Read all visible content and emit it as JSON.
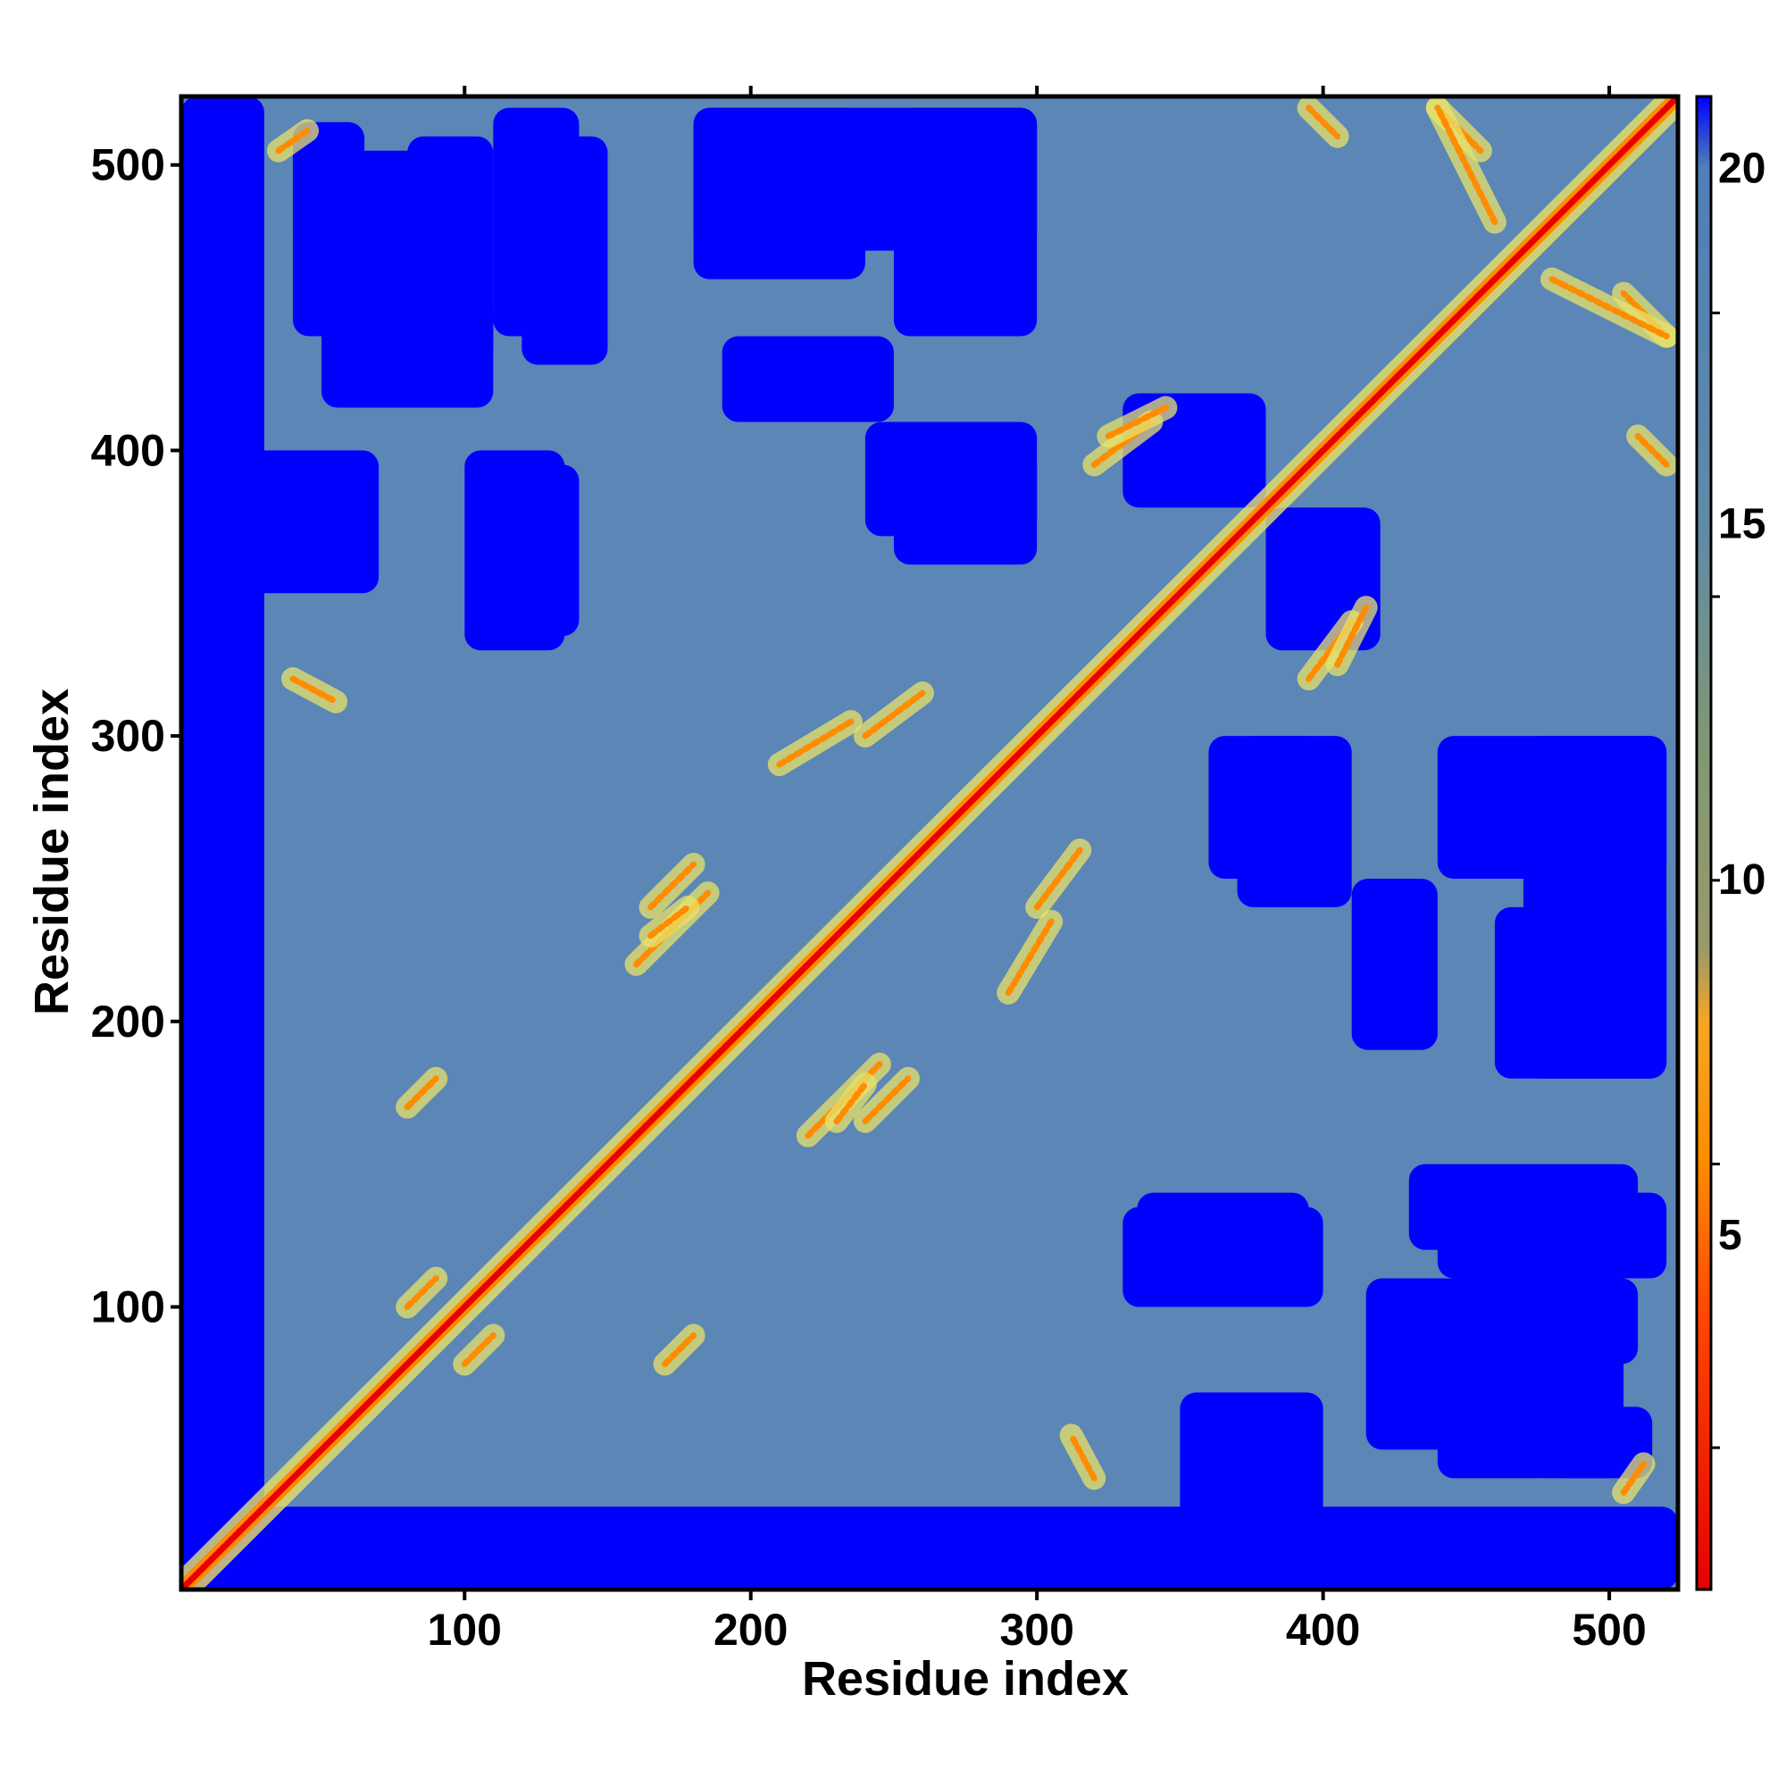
{
  "chart_data": {
    "type": "heatmap",
    "title": "",
    "xlabel": "Residue index",
    "ylabel": "Residue index",
    "xlim": [
      1,
      524
    ],
    "ylim": [
      1,
      524
    ],
    "x_ticks": [
      100,
      200,
      300,
      400,
      500
    ],
    "y_ticks": [
      100,
      200,
      300,
      400,
      500
    ],
    "diagonal": [
      [
        1,
        1
      ],
      [
        524,
        524
      ]
    ],
    "colorbar": {
      "ticks": [
        5,
        10,
        15,
        20
      ],
      "range": [
        0,
        21
      ],
      "stops": [
        {
          "value": 0,
          "color": "#e60000"
        },
        {
          "value": 4,
          "color": "#ff4a00"
        },
        {
          "value": 6,
          "color": "#ff8c00"
        },
        {
          "value": 8,
          "color": "#f5a623"
        },
        {
          "value": 9,
          "color": "#9a9a6a"
        },
        {
          "value": 12,
          "color": "#7f9775"
        },
        {
          "value": 15,
          "color": "#5f8aa8"
        },
        {
          "value": 20,
          "color": "#4f80b8"
        },
        {
          "value": 21,
          "color": "#0000ff"
        }
      ]
    },
    "colors": {
      "far": "#0000ff",
      "mid": "#5b86b5",
      "near": "#e8e36a",
      "close": "#ff8c00",
      "contact": "#e60000"
    },
    "contact_features": [
      {
        "from": [
          40,
          320
        ],
        "to": [
          55,
          312
        ]
      },
      {
        "from": [
          240,
          300
        ],
        "to": [
          260,
          315
        ]
      },
      {
        "from": [
          320,
          395
        ],
        "to": [
          340,
          410
        ]
      },
      {
        "from": [
          440,
          520
        ],
        "to": [
          455,
          505
        ]
      },
      {
        "from": [
          480,
          460
        ],
        "to": [
          520,
          440
        ]
      },
      {
        "from": [
          80,
          170
        ],
        "to": [
          90,
          180
        ]
      },
      {
        "from": [
          100,
          80
        ],
        "to": [
          110,
          90
        ]
      },
      {
        "from": [
          160,
          220
        ],
        "to": [
          185,
          245
        ]
      },
      {
        "from": [
          290,
          210
        ],
        "to": [
          305,
          235
        ]
      },
      {
        "from": [
          405,
          325
        ],
        "to": [
          415,
          345
        ]
      },
      {
        "from": [
          35,
          505
        ],
        "to": [
          45,
          512
        ]
      },
      {
        "from": [
          395,
          520
        ],
        "to": [
          405,
          510
        ]
      },
      {
        "from": [
          165,
          240
        ],
        "to": [
          180,
          255
        ]
      },
      {
        "from": [
          230,
          165
        ],
        "to": [
          240,
          178
        ]
      }
    ],
    "far_regions": [
      {
        "x": [
          1,
          30
        ],
        "y": [
          1,
          524
        ]
      },
      {
        "x": [
          1,
          524
        ],
        "y": [
          1,
          18
        ]
      },
      {
        "x": [
          350,
          400
        ],
        "y": [
          18,
          70
        ]
      },
      {
        "x": [
          440,
          480
        ],
        "y": [
          40,
          85
        ]
      },
      {
        "x": [
          470,
          505
        ],
        "y": [
          40,
          85
        ]
      },
      {
        "x": [
          335,
          395
        ],
        "y": [
          110,
          140
        ]
      },
      {
        "x": [
          440,
          520
        ],
        "y": [
          110,
          140
        ]
      },
      {
        "x": [
          40,
          65
        ],
        "y": [
          480,
          515
        ]
      },
      {
        "x": [
          80,
          110
        ],
        "y": [
          430,
          510
        ]
      },
      {
        "x": [
          120,
          150
        ],
        "y": [
          430,
          510
        ]
      },
      {
        "x": [
          50,
          110
        ],
        "y": [
          415,
          455
        ]
      },
      {
        "x": [
          100,
          135
        ],
        "y": [
          330,
          400
        ]
      },
      {
        "x": [
          180,
          300
        ],
        "y": [
          470,
          520
        ]
      },
      {
        "x": [
          380,
          420
        ],
        "y": [
          330,
          380
        ]
      },
      {
        "x": [
          360,
          400
        ],
        "y": [
          250,
          300
        ]
      },
      {
        "x": [
          440,
          520
        ],
        "y": [
          250,
          300
        ]
      },
      {
        "x": [
          410,
          440
        ],
        "y": [
          190,
          250
        ]
      },
      {
        "x": [
          460,
          520
        ],
        "y": [
          180,
          240
        ]
      },
      {
        "x": [
          240,
          300
        ],
        "y": [
          370,
          410
        ]
      }
    ]
  }
}
